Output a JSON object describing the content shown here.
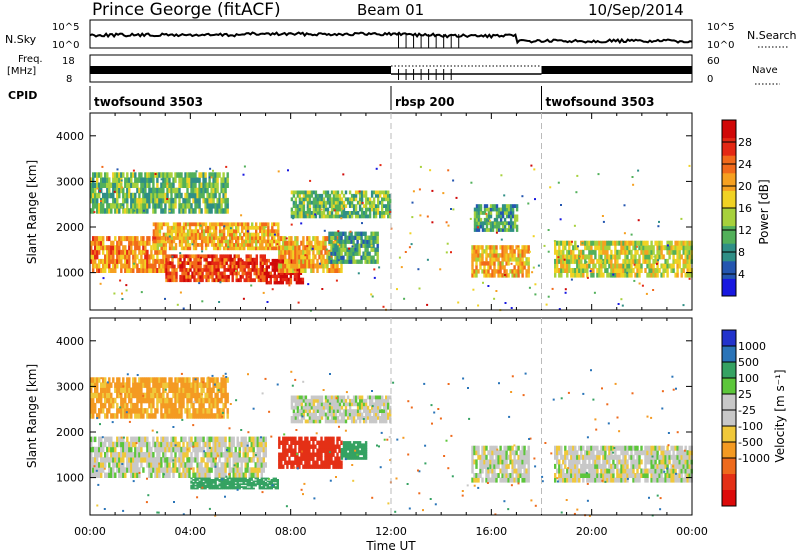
{
  "header": {
    "station": "Prince George (fitACF)",
    "beam": "Beam 01",
    "date": "10/Sep/2014"
  },
  "noise_panel": {
    "left_label": "N.Sky",
    "right_label": "N.Search",
    "yticks_left": [
      "10^5",
      "10^0"
    ],
    "yticks_right": [
      "10^5",
      "10^0"
    ]
  },
  "freq_panel": {
    "left_label_1": "Freq.",
    "left_label_2": "[MHz]",
    "yticks_left": [
      "18",
      "8"
    ],
    "right_label": "Nave",
    "yticks_right": [
      "60",
      "0"
    ]
  },
  "cpid": {
    "label": "CPID",
    "segments": [
      {
        "name": "twofsound 3503",
        "start_h": 0,
        "end_h": 12
      },
      {
        "name": "rbsp 200",
        "start_h": 12,
        "end_h": 18
      },
      {
        "name": "twofsound 3503",
        "start_h": 18,
        "end_h": 24
      }
    ]
  },
  "chart_data": [
    {
      "type": "heatmap",
      "panel": "power",
      "xlabel": "",
      "ylabel": "Slant Range [km]",
      "xlim": [
        0,
        24
      ],
      "ylim": [
        180,
        4500
      ],
      "yticks": [
        1000,
        2000,
        3000,
        4000
      ],
      "colorbar": {
        "label": "Power [dB]",
        "range": [
          0,
          32
        ],
        "ticks": [
          4,
          8,
          12,
          16,
          20,
          24,
          28
        ],
        "colors": [
          "#1818e0",
          "#2456b0",
          "#2f8f86",
          "#52b05a",
          "#a7d13c",
          "#f0d224",
          "#f6a020",
          "#f26a1a",
          "#e42814",
          "#d00808"
        ]
      },
      "bands": [
        {
          "t0": 0.0,
          "t1": 3.0,
          "r0": 1000,
          "r1": 1800,
          "v": 22
        },
        {
          "t0": 3.0,
          "t1": 7.0,
          "r0": 800,
          "r1": 1400,
          "v": 26
        },
        {
          "t0": 7.0,
          "t1": 8.5,
          "r0": 750,
          "r1": 1300,
          "v": 30
        },
        {
          "t0": 2.5,
          "t1": 7.5,
          "r0": 1500,
          "r1": 2100,
          "v": 20
        },
        {
          "t0": 0.0,
          "t1": 5.5,
          "r0": 2300,
          "r1": 3200,
          "v": 12
        },
        {
          "t0": 7.5,
          "t1": 10.0,
          "r0": 1000,
          "r1": 1800,
          "v": 20
        },
        {
          "t0": 8.0,
          "t1": 12.0,
          "r0": 2200,
          "r1": 2800,
          "v": 12
        },
        {
          "t0": 9.5,
          "t1": 11.5,
          "r0": 1200,
          "r1": 1900,
          "v": 10
        },
        {
          "t0": 15.2,
          "t1": 17.5,
          "r0": 900,
          "r1": 1600,
          "v": 20
        },
        {
          "t0": 15.3,
          "t1": 17.0,
          "r0": 1900,
          "r1": 2500,
          "v": 10
        },
        {
          "t0": 18.5,
          "t1": 24.0,
          "r0": 900,
          "r1": 1700,
          "v": 16
        }
      ]
    },
    {
      "type": "heatmap",
      "panel": "velocity",
      "xlabel": "Time UT",
      "ylabel": "Slant Range [km]",
      "xlim": [
        0,
        24
      ],
      "ylim": [
        180,
        4500
      ],
      "yticks": [
        1000,
        2000,
        3000,
        4000
      ],
      "xticks": [
        "00:00",
        "04:00",
        "08:00",
        "12:00",
        "16:00",
        "20:00",
        "00:00"
      ],
      "colorbar": {
        "label": "Velocity [m s⁻¹]",
        "ticks": [
          "1000",
          "500",
          "100",
          "25",
          "-25",
          "-100",
          "-500",
          "-1000"
        ],
        "colors": [
          "#2233cc",
          "#2a74b8",
          "#35a262",
          "#5cc63a",
          "#c8c8c8",
          "#c8c8c8",
          "#f0c83a",
          "#f49a22",
          "#ee6a1c",
          "#e43016",
          "#dc0a0a"
        ]
      },
      "bands": [
        {
          "t0": 0.0,
          "t1": 7.0,
          "r0": 1000,
          "r1": 1900,
          "v": 0
        },
        {
          "t0": 4.0,
          "t1": 7.5,
          "r0": 750,
          "r1": 1000,
          "v": 150
        },
        {
          "t0": 7.5,
          "t1": 10.0,
          "r0": 1200,
          "r1": 1900,
          "v": -800
        },
        {
          "t0": 10.0,
          "t1": 11.0,
          "r0": 1400,
          "r1": 1800,
          "v": 200
        },
        {
          "t0": 8.0,
          "t1": 12.0,
          "r0": 2200,
          "r1": 2800,
          "v": 0
        },
        {
          "t0": 0.0,
          "t1": 5.5,
          "r0": 2300,
          "r1": 3200,
          "v": -80
        },
        {
          "t0": 15.2,
          "t1": 17.5,
          "r0": 900,
          "r1": 1700,
          "v": 0
        },
        {
          "t0": 18.5,
          "t1": 24.0,
          "r0": 900,
          "r1": 1700,
          "v": 0
        }
      ]
    }
  ]
}
